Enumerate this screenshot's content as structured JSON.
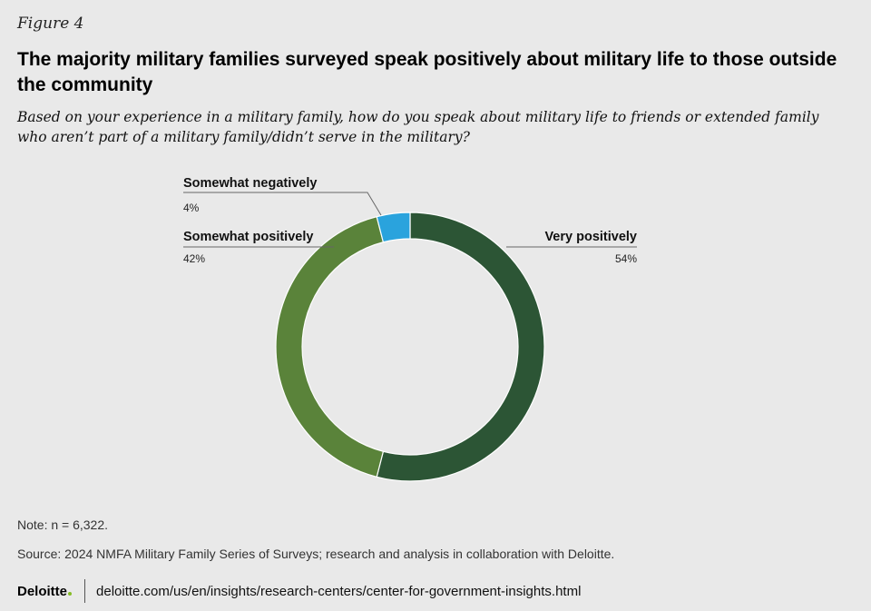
{
  "figure_label": "Figure 4",
  "title": "The majority military families surveyed speak positively about military life to those outside the community",
  "subtitle": "Based on your experience in a military family, how do you speak about military life to friends or extended family who aren’t part of a military family/didn’t serve in the military?",
  "chart_data": {
    "type": "pie",
    "subtype": "donut",
    "slices": [
      {
        "label": "Very positively",
        "value": 54,
        "value_label": "54%",
        "color": "#2c5535",
        "label_side": "right"
      },
      {
        "label": "Somewhat positively",
        "value": 42,
        "value_label": "42%",
        "color": "#5a833a",
        "label_side": "left"
      },
      {
        "label": "Somewhat negatively",
        "value": 4,
        "value_label": "4%",
        "color": "#2aa3dd",
        "label_side": "left"
      }
    ],
    "start_angle_deg": 0,
    "direction": "clockwise"
  },
  "note": "Note: n = 6,322.",
  "source": "Source: 2024 NMFA Military Family Series of Surveys; research and analysis in collaboration with Deloitte.",
  "footer": {
    "logo_text": "Deloitte",
    "url": "deloitte.com/us/en/insights/research-centers/center-for-government-insights.html"
  },
  "colors": {
    "background": "#e9e9e9",
    "logo_dot": "#86bc25"
  }
}
